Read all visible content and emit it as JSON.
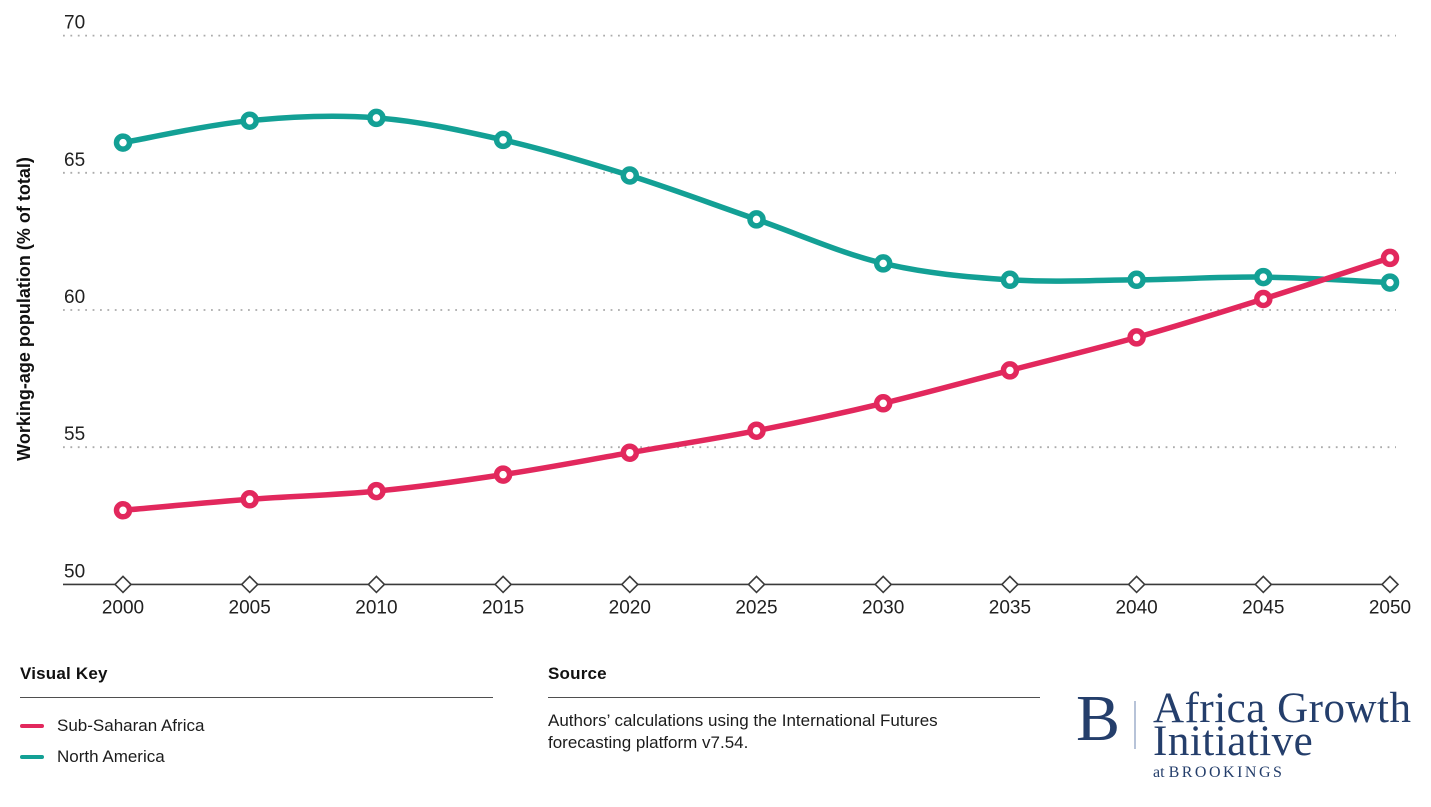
{
  "chart_data": {
    "type": "line",
    "title": "",
    "xlabel": "",
    "ylabel": "Working-age population (% of total)",
    "categories": [
      2000,
      2005,
      2010,
      2015,
      2020,
      2025,
      2030,
      2035,
      2040,
      2045,
      2050
    ],
    "yticks": [
      70,
      65,
      60,
      55,
      50
    ],
    "ylim": [
      50,
      70
    ],
    "grid": "horizontal dotted lines at 55, 60, 65, 70; solid baseline at 50 with diamond tick markers",
    "legend_position": "bottom-left visual key block",
    "axis_color": "#3a3a3a",
    "grid_color": "#ababab",
    "series": [
      {
        "name": "Sub-Saharan Africa",
        "color": "#e2285d",
        "values": [
          52.7,
          53.1,
          53.4,
          54.0,
          54.8,
          55.6,
          56.6,
          57.8,
          59.0,
          60.4,
          61.9
        ]
      },
      {
        "name": "North America",
        "color": "#13a095",
        "values": [
          66.1,
          66.9,
          67.0,
          66.2,
          64.9,
          63.3,
          61.7,
          61.1,
          61.1,
          61.2,
          61.0
        ]
      }
    ]
  },
  "footer": {
    "visual_key": {
      "heading": "Visual Key",
      "items": [
        {
          "label": "Sub-Saharan Africa",
          "color": "#e2285d"
        },
        {
          "label": "North America",
          "color": "#13a095"
        }
      ]
    },
    "source": {
      "heading": "Source",
      "text": "Authors’ calculations using the International Futures forecasting platform v7.54."
    },
    "logo": {
      "letter": "B",
      "line1": "Africa Growth",
      "line2": "Initiative",
      "tagline_prefix": "at",
      "tagline": "BROOKINGS",
      "navy": "#243e6b"
    }
  }
}
